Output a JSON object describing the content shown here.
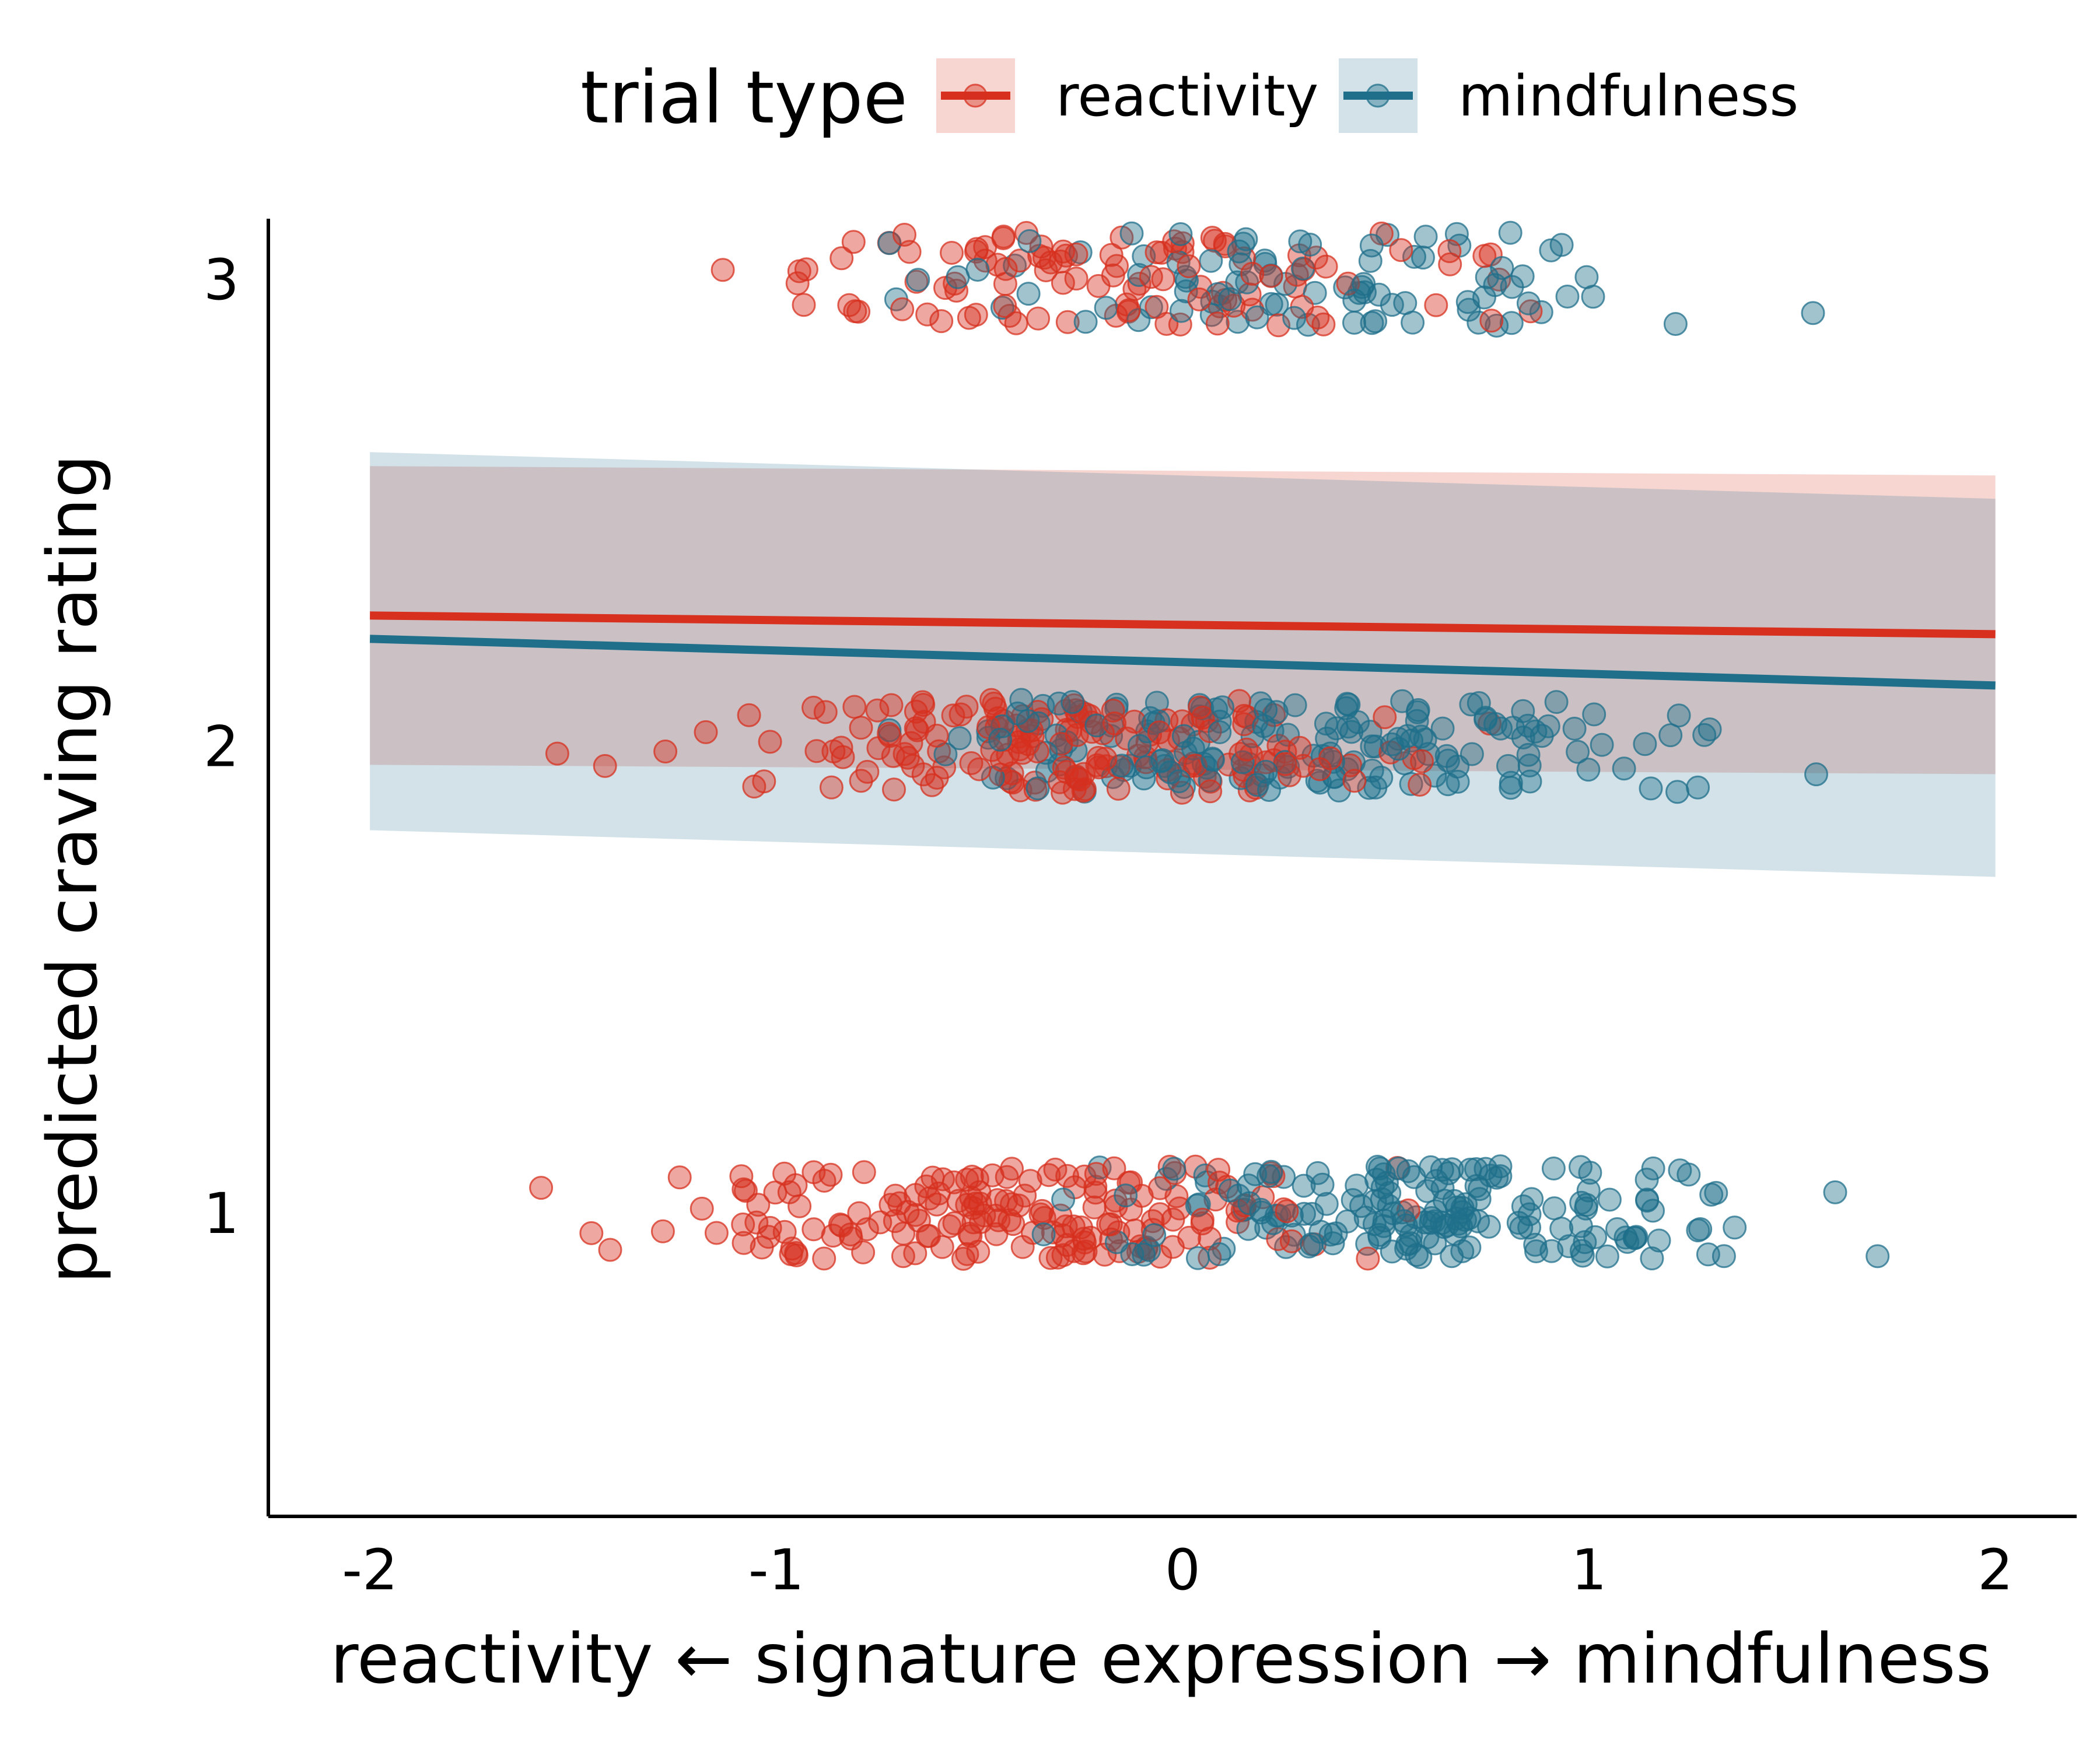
{
  "chart_data": {
    "type": "scatter",
    "title": "",
    "xlabel": "reactivity   ←   signature expression   →   mindfulness",
    "ylabel": "predicted craving rating",
    "xlim": [
      -2.25,
      2.2
    ],
    "ylim": [
      0.35,
      3.13
    ],
    "x_ticks": [
      -2,
      -1,
      0,
      1,
      2
    ],
    "x_tick_labels": [
      "-2",
      "-1",
      "0",
      "1",
      "2"
    ],
    "y_ticks": [
      1,
      2,
      3
    ],
    "y_tick_labels": [
      "1",
      "2",
      "3"
    ],
    "grid": false,
    "legend": {
      "title": "trial type",
      "position": "top",
      "entries": [
        "reactivity",
        "mindfulness"
      ]
    },
    "series": [
      {
        "name": "reactivity",
        "color": "#d7301f",
        "fit_line": {
          "x": [
            -2,
            2
          ],
          "y": [
            2.28,
            2.24
          ]
        },
        "ribbon": {
          "x": [
            -2,
            2
          ],
          "lower": [
            1.96,
            1.94
          ],
          "upper": [
            2.6,
            2.58
          ]
        },
        "points_per_level": {
          "1": 180,
          "2": 170,
          "3": 110
        }
      },
      {
        "name": "mindfulness",
        "color": "#1f6f8b",
        "fit_line": {
          "x": [
            -2,
            2
          ],
          "y": [
            2.23,
            2.13
          ]
        },
        "ribbon": {
          "x": [
            -2,
            2
          ],
          "lower": [
            1.82,
            1.72
          ],
          "upper": [
            2.63,
            2.53
          ]
        },
        "points_per_level": {
          "1": 180,
          "2": 170,
          "3": 90
        }
      }
    ]
  }
}
